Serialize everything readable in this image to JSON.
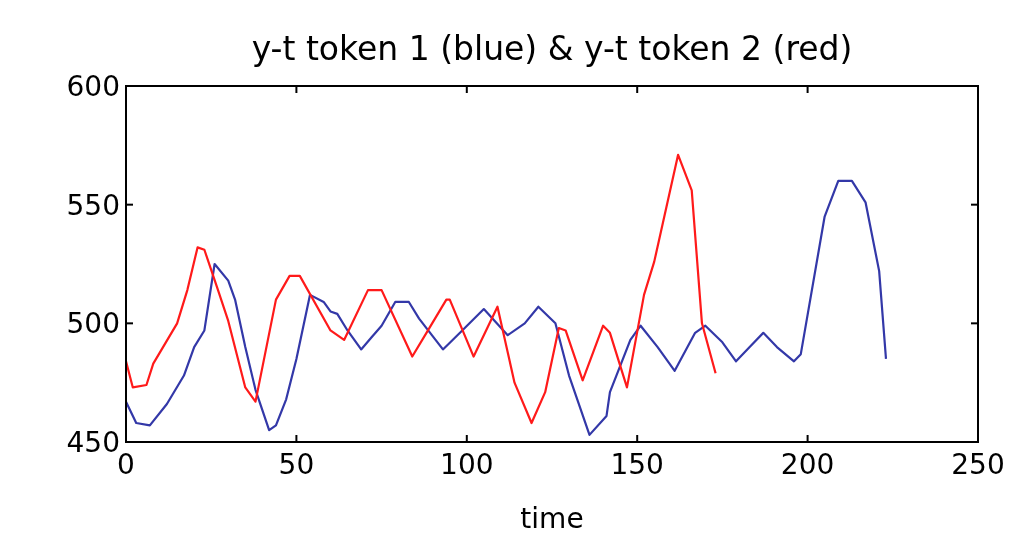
{
  "chart_data": {
    "type": "line",
    "title": "y-t token 1 (blue) & y-t token 2 (red)",
    "xlabel": "time",
    "xlim": [
      0,
      250
    ],
    "xticks": [
      0,
      50,
      100,
      150,
      200,
      250
    ],
    "ylim": [
      450,
      600
    ],
    "yticks": [
      450,
      500,
      550,
      600
    ],
    "grid": false,
    "series": [
      {
        "color": "#3338a8",
        "x": [
          0,
          3,
          7,
          12,
          17,
          20,
          23,
          26,
          30,
          32,
          35,
          38,
          42,
          44,
          47,
          50,
          54,
          58,
          60,
          62,
          65,
          69,
          72,
          75,
          79,
          83,
          86,
          93,
          98,
          105,
          112,
          117,
          121,
          126,
          130,
          136,
          141,
          142,
          148,
          151,
          156,
          161,
          167,
          170,
          175,
          179,
          183,
          187,
          191,
          196,
          198,
          205,
          209,
          213,
          217,
          221,
          223
        ],
        "values": [
          467,
          458,
          457,
          466,
          478,
          490,
          497,
          525,
          518,
          510,
          490,
          472,
          455,
          457,
          468,
          485,
          512,
          509,
          505,
          504,
          497,
          489,
          494,
          499,
          509,
          509,
          502,
          489,
          496,
          506,
          495,
          500,
          507,
          500,
          478,
          453,
          461,
          471,
          493,
          499,
          490,
          480,
          496,
          499,
          492,
          484,
          490,
          496,
          490,
          484,
          487,
          545,
          560,
          560,
          551,
          522,
          485
        ]
      },
      {
        "color": "#ff1a1a",
        "x": [
          0,
          2,
          6,
          8,
          15,
          18,
          21,
          23,
          27,
          30,
          35,
          38,
          44,
          48,
          51,
          60,
          64,
          71,
          75,
          84,
          89,
          94,
          95,
          102,
          109,
          114,
          119,
          123,
          127,
          129,
          134,
          140,
          142,
          147,
          152,
          155,
          162,
          166,
          169,
          173
        ],
        "values": [
          484,
          473,
          474,
          483,
          500,
          514,
          532,
          531,
          514,
          501,
          473,
          467,
          510,
          520,
          520,
          497,
          493,
          514,
          514,
          486,
          498,
          510,
          510,
          486,
          507,
          475,
          458,
          471,
          498,
          497,
          476,
          499,
          496,
          473,
          512,
          526,
          571,
          556,
          500,
          479
        ]
      }
    ]
  }
}
